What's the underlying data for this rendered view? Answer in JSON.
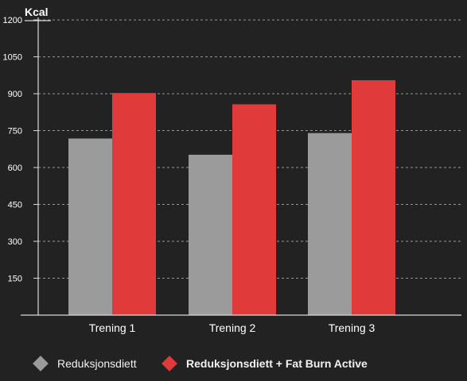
{
  "chart_data": {
    "type": "bar",
    "ylabel": "Kcal",
    "categories": [
      "Trening 1",
      "Trening 2",
      "Trening 3"
    ],
    "yticks": [
      150,
      300,
      450,
      600,
      750,
      900,
      1050,
      1200
    ],
    "ylim": [
      0,
      1210
    ],
    "grid": true,
    "legend_position": "bottom",
    "series": [
      {
        "name": "Reduksjonsdiett",
        "values": [
          718,
          652,
          740
        ],
        "color": "#9b9b9b"
      },
      {
        "name": "Reduksjonsdiett  + Fat Burn Active",
        "values": [
          903,
          857,
          955
        ],
        "color": "#e03a3a"
      }
    ]
  },
  "colors": {
    "background": "#222222",
    "axis": "#d9d9d9",
    "grid": "#bdbdbd",
    "text": "#ffffff"
  }
}
